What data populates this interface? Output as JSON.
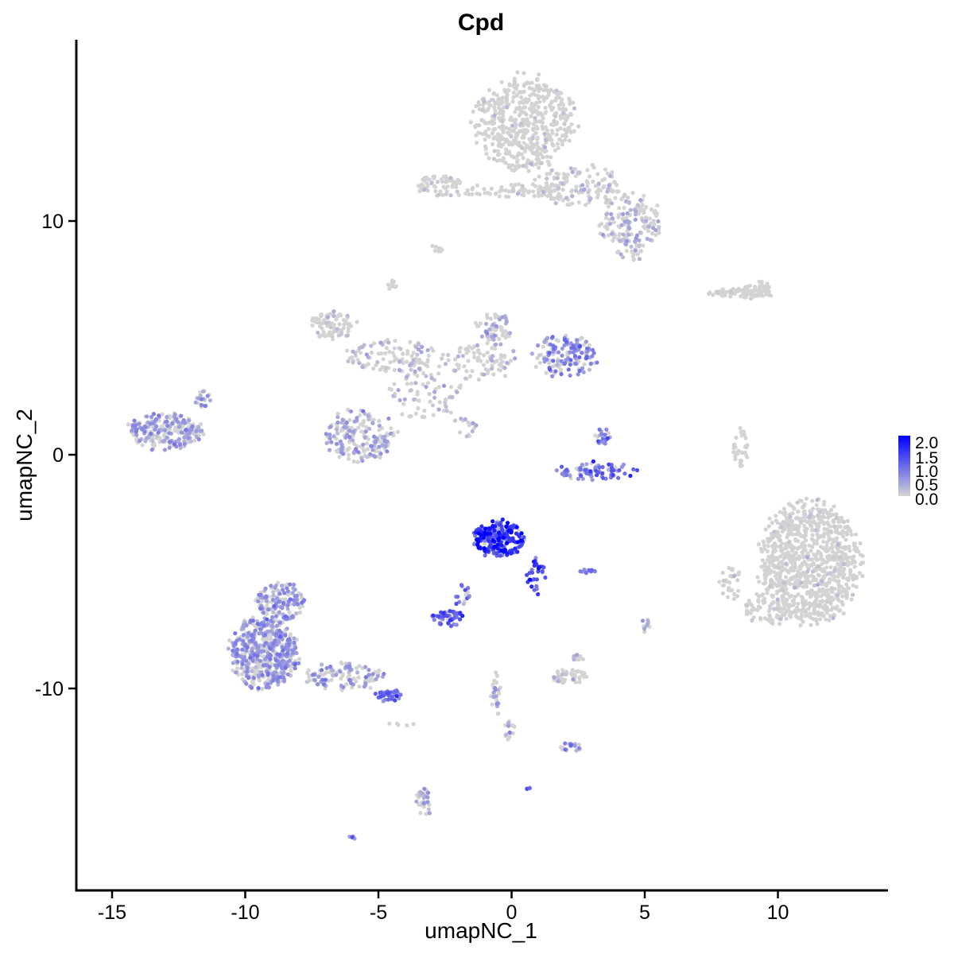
{
  "chart_data": {
    "type": "scatter",
    "title": "Cpd",
    "xlabel": "umapNC_1",
    "ylabel": "umapNC_2",
    "xlim": [
      -16.5,
      14.5
    ],
    "ylim": [
      -18.5,
      17.5
    ],
    "x_ticks": [
      -15,
      -10,
      -5,
      0,
      5,
      10
    ],
    "x_tick_labels": [
      "-15",
      "-10",
      "-5",
      "0",
      "5",
      "10"
    ],
    "y_ticks": [
      -10,
      0,
      10
    ],
    "y_tick_labels": [
      "-10",
      "0",
      "10"
    ],
    "grid": false,
    "legend": {
      "placement": "right",
      "type": "colorbar",
      "range": [
        0,
        2.0
      ],
      "labels": [
        "2.0",
        "1.5",
        "1.0",
        "0.5",
        "0.0"
      ],
      "color_low": "#d3d3d3",
      "color_high": "#0000ff"
    },
    "clusters": [
      {
        "cx": 0.5,
        "cy": 14.2,
        "rx": 1.9,
        "ry": 2.0,
        "n": 520,
        "expr": 0.04
      },
      {
        "cx": 2.5,
        "cy": 11.5,
        "rx": 1.6,
        "ry": 0.9,
        "n": 140,
        "expr": 0.2
      },
      {
        "cx": 4.5,
        "cy": 10.0,
        "rx": 1.2,
        "ry": 1.2,
        "n": 140,
        "expr": 0.35
      },
      {
        "cx": 4.4,
        "cy": 8.8,
        "rx": 0.6,
        "ry": 0.6,
        "n": 30,
        "expr": 0.3
      },
      {
        "cx": -2.7,
        "cy": 11.5,
        "rx": 0.9,
        "ry": 0.5,
        "n": 60,
        "expr": 0.15
      },
      {
        "cx": -0.3,
        "cy": 11.3,
        "rx": 2.0,
        "ry": 0.3,
        "n": 60,
        "expr": 0.08
      },
      {
        "cx": -2.8,
        "cy": 8.8,
        "rx": 0.3,
        "ry": 0.15,
        "n": 10,
        "expr": 0.0
      },
      {
        "cx": -4.5,
        "cy": 7.3,
        "rx": 0.3,
        "ry": 0.2,
        "n": 10,
        "expr": 0.0
      },
      {
        "cx": -6.7,
        "cy": 5.5,
        "rx": 0.9,
        "ry": 0.6,
        "n": 80,
        "expr": 0.2
      },
      {
        "cx": -4.5,
        "cy": 4.2,
        "rx": 1.7,
        "ry": 0.8,
        "n": 100,
        "expr": 0.3
      },
      {
        "cx": -3.2,
        "cy": 2.8,
        "rx": 1.5,
        "ry": 1.3,
        "n": 80,
        "expr": 0.25
      },
      {
        "cx": -1.2,
        "cy": 4.0,
        "rx": 1.4,
        "ry": 0.8,
        "n": 80,
        "expr": 0.25
      },
      {
        "cx": -0.7,
        "cy": 5.4,
        "rx": 0.7,
        "ry": 0.7,
        "n": 60,
        "expr": 0.35
      },
      {
        "cx": 2.0,
        "cy": 4.2,
        "rx": 1.2,
        "ry": 0.9,
        "n": 150,
        "expr": 0.65
      },
      {
        "cx": -5.7,
        "cy": 0.8,
        "rx": 1.4,
        "ry": 1.1,
        "n": 190,
        "expr": 0.45
      },
      {
        "cx": -13.0,
        "cy": 1.0,
        "rx": 1.4,
        "ry": 0.8,
        "n": 220,
        "expr": 0.5
      },
      {
        "cx": -11.6,
        "cy": 2.4,
        "rx": 0.3,
        "ry": 0.4,
        "n": 20,
        "expr": 0.6
      },
      {
        "cx": -1.8,
        "cy": 1.2,
        "rx": 0.5,
        "ry": 0.5,
        "n": 15,
        "expr": 0.35
      },
      {
        "cx": 3.2,
        "cy": -0.7,
        "rx": 1.5,
        "ry": 0.4,
        "n": 80,
        "expr": 0.9
      },
      {
        "cx": 3.4,
        "cy": 0.8,
        "rx": 0.3,
        "ry": 0.4,
        "n": 20,
        "expr": 0.8
      },
      {
        "cx": 8.6,
        "cy": 0.3,
        "rx": 0.3,
        "ry": 0.9,
        "n": 30,
        "expr": 0.0
      },
      {
        "cx": 8.6,
        "cy": 6.9,
        "rx": 1.2,
        "ry": 0.2,
        "n": 60,
        "expr": 0.05
      },
      {
        "cx": 9.3,
        "cy": 7.0,
        "rx": 0.7,
        "ry": 0.4,
        "n": 50,
        "expr": 0.0
      },
      {
        "cx": 11.2,
        "cy": -4.6,
        "rx": 1.9,
        "ry": 2.6,
        "n": 900,
        "expr": 0.04
      },
      {
        "cx": 9.6,
        "cy": -6.6,
        "rx": 0.9,
        "ry": 0.7,
        "n": 80,
        "expr": 0.02
      },
      {
        "cx": 8.2,
        "cy": -5.5,
        "rx": 0.4,
        "ry": 0.8,
        "n": 30,
        "expr": 0.02
      },
      {
        "cx": -0.5,
        "cy": -3.6,
        "rx": 1.0,
        "ry": 0.8,
        "n": 220,
        "expr": 1.4
      },
      {
        "cx": 0.9,
        "cy": -5.2,
        "rx": 0.4,
        "ry": 0.8,
        "n": 30,
        "expr": 1.2
      },
      {
        "cx": -2.4,
        "cy": -7.0,
        "rx": 0.6,
        "ry": 0.35,
        "n": 50,
        "expr": 1.0
      },
      {
        "cx": -1.8,
        "cy": -6.0,
        "rx": 0.5,
        "ry": 0.5,
        "n": 15,
        "expr": 0.9
      },
      {
        "cx": 2.9,
        "cy": -5.0,
        "rx": 0.3,
        "ry": 0.1,
        "n": 12,
        "expr": 0.8
      },
      {
        "cx": 5.0,
        "cy": -7.3,
        "rx": 0.2,
        "ry": 0.3,
        "n": 10,
        "expr": 0.6
      },
      {
        "cx": -9.3,
        "cy": -8.5,
        "rx": 1.3,
        "ry": 1.5,
        "n": 520,
        "expr": 0.55
      },
      {
        "cx": -8.7,
        "cy": -6.3,
        "rx": 0.9,
        "ry": 0.9,
        "n": 140,
        "expr": 0.55
      },
      {
        "cx": -6.3,
        "cy": -9.5,
        "rx": 1.5,
        "ry": 0.6,
        "n": 110,
        "expr": 0.55
      },
      {
        "cx": -4.6,
        "cy": -10.3,
        "rx": 0.5,
        "ry": 0.3,
        "n": 40,
        "expr": 0.9
      },
      {
        "cx": 2.2,
        "cy": -9.5,
        "rx": 0.7,
        "ry": 0.3,
        "n": 50,
        "expr": 0.15
      },
      {
        "cx": 2.5,
        "cy": -8.7,
        "rx": 0.2,
        "ry": 0.2,
        "n": 10,
        "expr": 0.3
      },
      {
        "cx": -0.6,
        "cy": -10.2,
        "rx": 0.2,
        "ry": 1.0,
        "n": 25,
        "expr": 0.45
      },
      {
        "cx": -0.1,
        "cy": -11.7,
        "rx": 0.2,
        "ry": 0.5,
        "n": 15,
        "expr": 0.5
      },
      {
        "cx": 2.2,
        "cy": -12.5,
        "rx": 0.5,
        "ry": 0.2,
        "n": 20,
        "expr": 0.6
      },
      {
        "cx": -3.3,
        "cy": -14.9,
        "rx": 0.3,
        "ry": 0.6,
        "n": 35,
        "expr": 0.45
      },
      {
        "cx": -6.0,
        "cy": -16.4,
        "rx": 0.1,
        "ry": 0.1,
        "n": 4,
        "expr": 0.8
      },
      {
        "cx": 0.6,
        "cy": -14.3,
        "rx": 0.1,
        "ry": 0.1,
        "n": 4,
        "expr": 0.8
      },
      {
        "cx": -4.1,
        "cy": -11.5,
        "rx": 0.5,
        "ry": 0.2,
        "n": 5,
        "expr": 0.0
      }
    ]
  }
}
